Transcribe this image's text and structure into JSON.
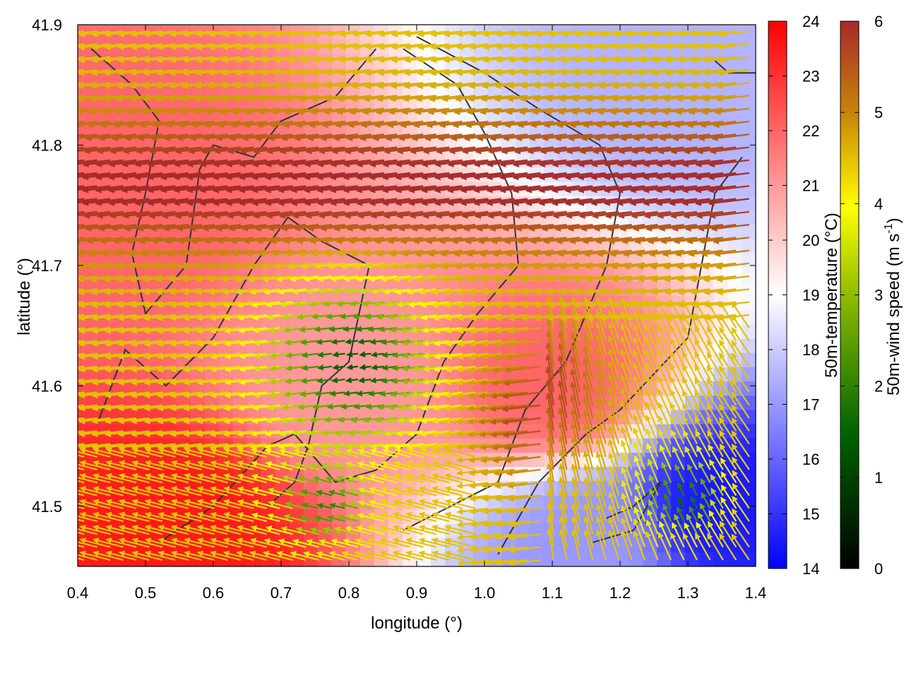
{
  "chart_data": {
    "type": "heatmap",
    "overlay": "wind-vectors",
    "xlabel": "longitude (°)",
    "ylabel": "latitude (°)",
    "xlim": [
      0.4,
      1.4
    ],
    "ylim": [
      41.45,
      41.9
    ],
    "x_ticks": [
      "0.4",
      "0.5",
      "0.6",
      "0.7",
      "0.8",
      "0.9",
      "1.0",
      "1.1",
      "1.2",
      "1.3",
      "1.4"
    ],
    "y_ticks": [
      "41.5",
      "41.6",
      "41.7",
      "41.8",
      "41.9"
    ],
    "grid": false,
    "temperature_colorbar": {
      "label": "50m-temperature (°C)",
      "range": [
        14,
        24
      ],
      "ticks": [
        "14",
        "15",
        "16",
        "17",
        "18",
        "19",
        "20",
        "21",
        "22",
        "23",
        "24"
      ],
      "colors": [
        "#0000ff",
        "#ffffff",
        "#ff0000"
      ]
    },
    "wind_colorbar": {
      "label_main": "50m-wind speed (m s",
      "label_sup": "-1",
      "label_end": ")",
      "range": [
        0,
        6
      ],
      "ticks": [
        "0",
        "1",
        "2",
        "3",
        "4",
        "5",
        "6"
      ],
      "colors": [
        "#000000",
        "#006400",
        "#ffff00",
        "#c8860a",
        "#a52a2a"
      ]
    },
    "temperature_field": {
      "description_regions": [
        {
          "lon": 0.55,
          "lat": 41.48,
          "temp": 23.5
        },
        {
          "lon": 0.45,
          "lat": 41.75,
          "temp": 22.0
        },
        {
          "lon": 0.8,
          "lat": 41.6,
          "temp": 21.0
        },
        {
          "lon": 1.1,
          "lat": 41.6,
          "temp": 22.0
        },
        {
          "lon": 1.35,
          "lat": 41.5,
          "temp": 14.5
        },
        {
          "lon": 1.15,
          "lat": 41.47,
          "temp": 17.0
        },
        {
          "lon": 1.3,
          "lat": 41.85,
          "temp": 17.5
        }
      ]
    }
  }
}
